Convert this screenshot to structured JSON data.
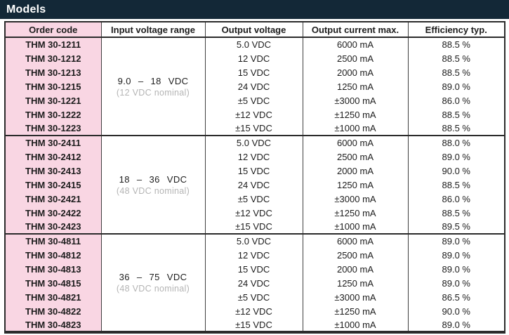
{
  "title": "Models",
  "colors": {
    "title_bar_background": "#132837",
    "title_text": "#ffffff",
    "order_code_column_pink": "#f9d6e3",
    "border": "#2b2b2b",
    "nominal_gray_text": "#b4b4b4",
    "body_text": "#1c1c1c"
  },
  "table": {
    "headers": {
      "order_code": "Order code",
      "input_voltage_range": "Input voltage range",
      "output_voltage": "Output voltage",
      "output_current_max": "Output current max.",
      "efficiency_typ": "Efficiency typ."
    },
    "groups": [
      {
        "input_range": "9.0 – 18 VDC",
        "input_nominal": "(12 VDC nominal)",
        "rows": [
          {
            "order_code": "THM 30-1211",
            "output_voltage": "5.0 VDC",
            "output_current": "6000 mA",
            "efficiency": "88.5 %"
          },
          {
            "order_code": "THM 30-1212",
            "output_voltage": "12 VDC",
            "output_current": "2500 mA",
            "efficiency": "88.5 %"
          },
          {
            "order_code": "THM 30-1213",
            "output_voltage": "15 VDC",
            "output_current": "2000 mA",
            "efficiency": "88.5 %"
          },
          {
            "order_code": "THM 30-1215",
            "output_voltage": "24 VDC",
            "output_current": "1250 mA",
            "efficiency": "89.0 %"
          },
          {
            "order_code": "THM 30-1221",
            "output_voltage": "±5 VDC",
            "output_current": "±3000 mA",
            "efficiency": "86.0 %"
          },
          {
            "order_code": "THM 30-1222",
            "output_voltage": "±12 VDC",
            "output_current": "±1250 mA",
            "efficiency": "88.5 %"
          },
          {
            "order_code": "THM 30-1223",
            "output_voltage": "±15 VDC",
            "output_current": "±1000 mA",
            "efficiency": "88.5 %"
          }
        ]
      },
      {
        "input_range": "18 – 36 VDC",
        "input_nominal": "(48 VDC nominal)",
        "rows": [
          {
            "order_code": "THM 30-2411",
            "output_voltage": "5.0 VDC",
            "output_current": "6000 mA",
            "efficiency": "88.0 %"
          },
          {
            "order_code": "THM 30-2412",
            "output_voltage": "12 VDC",
            "output_current": "2500 mA",
            "efficiency": "89.0 %"
          },
          {
            "order_code": "THM 30-2413",
            "output_voltage": "15 VDC",
            "output_current": "2000 mA",
            "efficiency": "90.0 %"
          },
          {
            "order_code": "THM 30-2415",
            "output_voltage": "24 VDC",
            "output_current": "1250 mA",
            "efficiency": "88.5 %"
          },
          {
            "order_code": "THM 30-2421",
            "output_voltage": "±5 VDC",
            "output_current": "±3000 mA",
            "efficiency": "86.0 %"
          },
          {
            "order_code": "THM 30-2422",
            "output_voltage": "±12 VDC",
            "output_current": "±1250 mA",
            "efficiency": "88.5 %"
          },
          {
            "order_code": "THM 30-2423",
            "output_voltage": "±15 VDC",
            "output_current": "±1000 mA",
            "efficiency": "89.5 %"
          }
        ]
      },
      {
        "input_range": "36 – 75 VDC",
        "input_nominal": "(48 VDC nominal)",
        "rows": [
          {
            "order_code": "THM 30-4811",
            "output_voltage": "5.0 VDC",
            "output_current": "6000 mA",
            "efficiency": "89.0 %"
          },
          {
            "order_code": "THM 30-4812",
            "output_voltage": "12 VDC",
            "output_current": "2500 mA",
            "efficiency": "89.0 %"
          },
          {
            "order_code": "THM 30-4813",
            "output_voltage": "15 VDC",
            "output_current": "2000 mA",
            "efficiency": "89.0 %"
          },
          {
            "order_code": "THM 30-4815",
            "output_voltage": "24 VDC",
            "output_current": "1250 mA",
            "efficiency": "89.0 %"
          },
          {
            "order_code": "THM 30-4821",
            "output_voltage": "±5 VDC",
            "output_current": "±3000 mA",
            "efficiency": "86.5 %"
          },
          {
            "order_code": "THM 30-4822",
            "output_voltage": "±12 VDC",
            "output_current": "±1250 mA",
            "efficiency": "90.0 %"
          },
          {
            "order_code": "THM 30-4823",
            "output_voltage": "±15 VDC",
            "output_current": "±1000 mA",
            "efficiency": "89.0 %"
          }
        ]
      }
    ]
  }
}
